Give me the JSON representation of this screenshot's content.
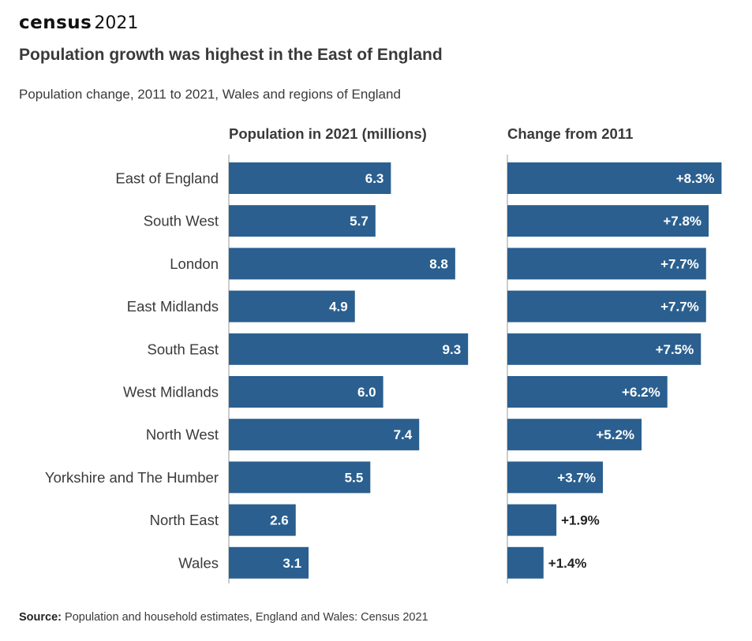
{
  "header": {
    "logo_word": "census",
    "logo_year": "2021",
    "title": "Population growth was highest in the East of England",
    "subtitle": "Population change, 2011 to 2021, Wales and regions of England"
  },
  "footer": {
    "source_label": "Source:",
    "source_text": " Population and household estimates, England and Wales: Census 2021"
  },
  "colors": {
    "bar": "#2a5f8f",
    "label_inside": "#ffffff",
    "label_outside": "#222222",
    "axis": "#bbbbbb"
  },
  "chart_data": [
    {
      "type": "bar",
      "orientation": "horizontal",
      "title": "Population in 2021 (millions)",
      "categories": [
        "East of England",
        "South West",
        "London",
        "East Midlands",
        "South East",
        "West Midlands",
        "North West",
        "Yorkshire and The Humber",
        "North East",
        "Wales"
      ],
      "values": [
        6.3,
        5.7,
        8.8,
        4.9,
        9.3,
        6.0,
        7.4,
        5.5,
        2.6,
        3.1
      ],
      "labels": [
        "6.3",
        "5.7",
        "8.8",
        "4.9",
        "9.3",
        "6.0",
        "7.4",
        "5.5",
        "2.6",
        "3.1"
      ],
      "xlim": [
        0,
        10
      ]
    },
    {
      "type": "bar",
      "orientation": "horizontal",
      "title": "Change from 2011",
      "categories": [
        "East of England",
        "South West",
        "London",
        "East Midlands",
        "South East",
        "West Midlands",
        "North West",
        "Yorkshire and The Humber",
        "North East",
        "Wales"
      ],
      "values": [
        8.3,
        7.8,
        7.7,
        7.7,
        7.5,
        6.2,
        5.2,
        3.7,
        1.9,
        1.4
      ],
      "labels": [
        "+8.3%",
        "+7.8%",
        "+7.7%",
        "+7.7%",
        "+7.5%",
        "+6.2%",
        "+5.2%",
        "+3.7%",
        "+1.9%",
        "+1.4%"
      ],
      "xlim": [
        0,
        9
      ]
    }
  ]
}
